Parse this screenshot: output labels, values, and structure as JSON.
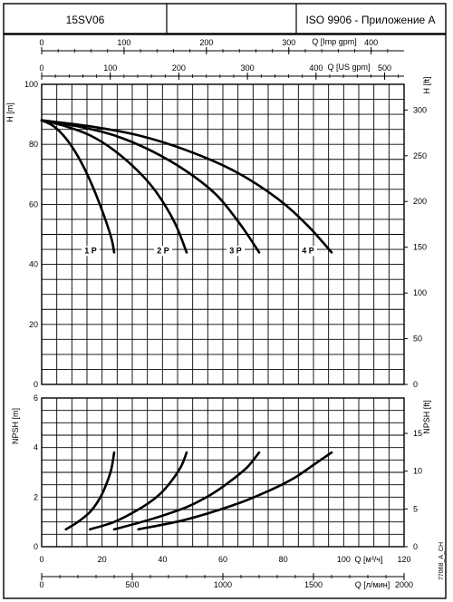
{
  "header": {
    "model": "15SV06",
    "middle": "",
    "standard": "ISO 9906 - Приложение A"
  },
  "chart_data": [
    {
      "type": "line",
      "panel": "head",
      "ylabel": "H [m]",
      "ylabel_right": "H [ft]",
      "ylim": [
        0,
        100
      ],
      "yticks": [
        0,
        20,
        40,
        60,
        80,
        100
      ],
      "yticks_right": [
        0,
        50,
        100,
        150,
        200,
        250,
        300
      ],
      "top_axes": [
        {
          "label": "Q [Imp gpm]",
          "ticks": [
            0,
            100,
            200,
            300,
            400
          ]
        },
        {
          "label": "Q [US gpm]",
          "ticks": [
            0,
            100,
            200,
            300,
            400,
            500
          ]
        }
      ],
      "grid": true,
      "series": [
        {
          "name": "1 P",
          "x": [
            0,
            4,
            8,
            12,
            16,
            20,
            23,
            24
          ],
          "y": [
            88,
            86,
            82,
            76,
            68,
            58,
            49,
            44
          ]
        },
        {
          "name": "2 P",
          "x": [
            0,
            8,
            16,
            24,
            32,
            38,
            44,
            48
          ],
          "y": [
            88,
            86,
            83,
            78,
            71,
            64,
            54,
            44
          ]
        },
        {
          "name": "3 P",
          "x": [
            0,
            12,
            24,
            36,
            48,
            58,
            66,
            72
          ],
          "y": [
            88,
            86,
            83,
            78,
            71,
            63,
            53,
            44
          ]
        },
        {
          "name": "4 P",
          "x": [
            0,
            16,
            32,
            48,
            64,
            78,
            88,
            96
          ],
          "y": [
            88,
            86,
            83,
            78,
            71,
            62,
            53,
            44
          ]
        }
      ]
    },
    {
      "type": "line",
      "panel": "npsh",
      "ylabel": "NPSH [m]",
      "ylabel_right": "NPSH [ft]",
      "ylim": [
        0,
        6
      ],
      "yticks": [
        0,
        2,
        4,
        6
      ],
      "yticks_right": [
        0,
        5,
        10,
        15
      ],
      "xlabel": "Q [м³/ч]",
      "xticks": [
        0,
        20,
        40,
        60,
        80,
        100,
        120
      ],
      "xlabel_bottom": "Q [л/мин]",
      "xticks_bottom": [
        0,
        500,
        1000,
        1500,
        2000
      ],
      "grid": true,
      "series": [
        {
          "name": "1 P",
          "x": [
            8,
            12,
            16,
            19,
            21,
            23,
            24
          ],
          "y": [
            0.7,
            1.0,
            1.4,
            1.9,
            2.4,
            3.1,
            3.8
          ]
        },
        {
          "name": "2 P",
          "x": [
            16,
            24,
            32,
            38,
            42,
            46,
            48
          ],
          "y": [
            0.7,
            1.0,
            1.5,
            2.0,
            2.5,
            3.2,
            3.8
          ]
        },
        {
          "name": "3 P",
          "x": [
            24,
            36,
            48,
            56,
            62,
            68,
            72
          ],
          "y": [
            0.7,
            1.1,
            1.6,
            2.1,
            2.6,
            3.2,
            3.8
          ]
        },
        {
          "name": "4 P",
          "x": [
            32,
            48,
            64,
            76,
            84,
            90,
            96
          ],
          "y": [
            0.7,
            1.1,
            1.7,
            2.3,
            2.8,
            3.3,
            3.8
          ]
        }
      ]
    }
  ],
  "code": "77068_A_CH"
}
